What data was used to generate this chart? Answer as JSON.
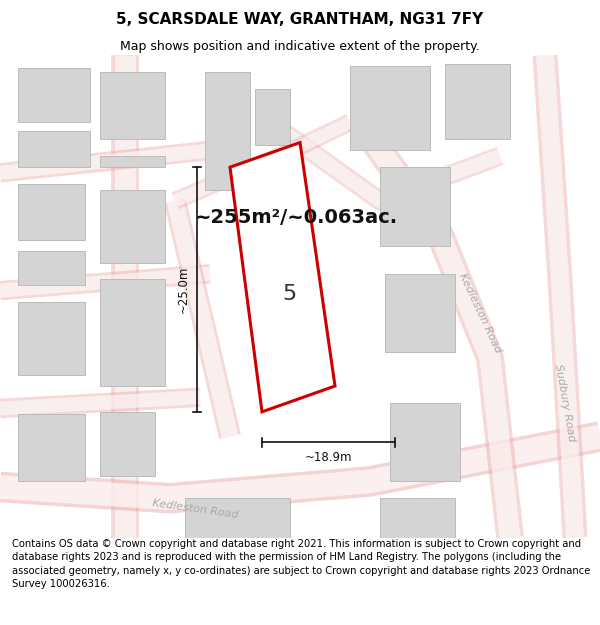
{
  "title": "5, SCARSDALE WAY, GRANTHAM, NG31 7FY",
  "subtitle": "Map shows position and indicative extent of the property.",
  "footer": "Contains OS data © Crown copyright and database right 2021. This information is subject to Crown copyright and database rights 2023 and is reproduced with the permission of HM Land Registry. The polygons (including the associated geometry, namely x, y co-ordinates) are subject to Crown copyright and database rights 2023 Ordnance Survey 100026316.",
  "area_label": "~255m²/~0.063ac.",
  "width_label": "~18.9m",
  "height_label": "~25.0m",
  "plot_number": "5",
  "bg_color": "#f2f2f2",
  "road_fill": "#ffffff",
  "road_stroke": "#e8a0a0",
  "building_fill": "#d4d4d4",
  "building_stroke": "#bbbbbb",
  "plot_stroke": "#cc0000",
  "dim_color": "#111111",
  "title_fontsize": 11,
  "subtitle_fontsize": 9,
  "footer_fontsize": 7.2,
  "area_label_fontsize": 14,
  "dim_fontsize": 8.5,
  "plot_label_fontsize": 16,
  "road_label_fontsize": 8
}
